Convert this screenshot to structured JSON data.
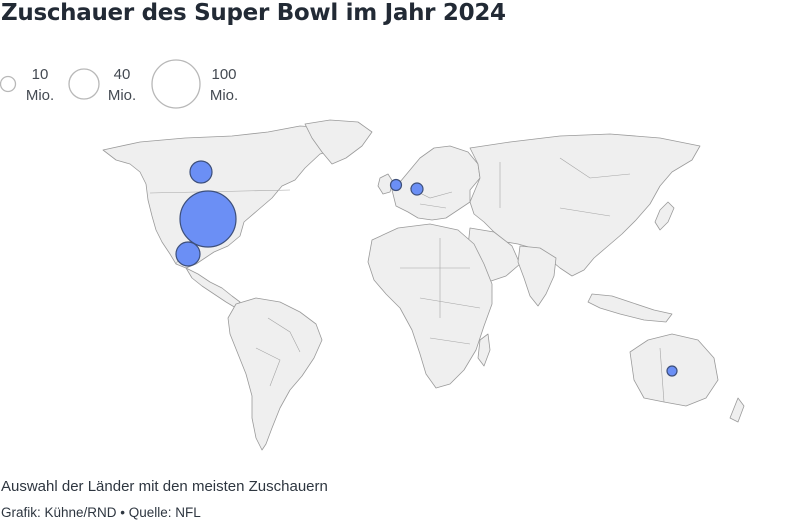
{
  "title": "Zuschauer des Super Bowl im Jahr 2024",
  "legend": {
    "items": [
      {
        "value": "10",
        "unit": "Mio."
      },
      {
        "value": "40",
        "unit": "Mio."
      },
      {
        "value": "100",
        "unit": "Mio."
      }
    ]
  },
  "map": {
    "land_color": "#efefef",
    "border_color": "#9a9a9a",
    "bubble_color": "#6b8ff5",
    "bubble_stroke": "#3d4f7a"
  },
  "note": "Auswahl der Länder mit den meisten Zuschauern",
  "credit": "Grafik: Kühne/RND • Quelle: NFL"
}
